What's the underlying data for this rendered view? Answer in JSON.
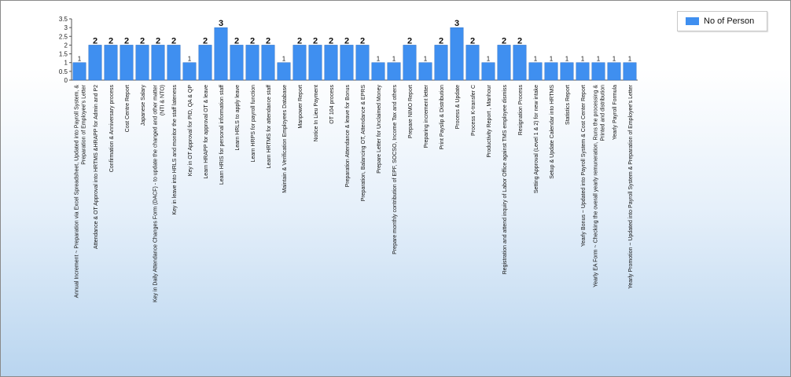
{
  "chart_data": {
    "type": "bar",
    "title": "",
    "xlabel": "",
    "ylabel": "",
    "ylim": [
      0,
      3.5
    ],
    "yticks": [
      "0",
      "0.5",
      "1",
      "1.5",
      "2",
      "2.5",
      "3",
      "3.5"
    ],
    "grid": false,
    "legend_position": "top-right",
    "bar_color": "#3f8ff0",
    "categories": [
      [
        "Annual Increment ~ Preparation via Excel Spreadsheet, Updated into Payroll System, &",
        "Preparation of Employee's Letter"
      ],
      [
        "Attendance & OT Approval into HRTMS &HRAPP for Admin and P2"
      ],
      [
        "Confirmation & Anniversary process"
      ],
      [
        "Cost Centre Report"
      ],
      [
        "Japanese Salary"
      ],
      [
        "Key in Daily Attendance Changes Form (DACF) - to update the changed and other matter",
        "(NTI & NTO)"
      ],
      [
        "Key in leave into HRLS and monitor the staff lateness"
      ],
      [
        "Key in OT Approval for PID, QA & QP"
      ],
      [
        "Learn HRAPP for approval OT & leave"
      ],
      [
        "Learn HRIS for  personal information staff"
      ],
      [
        "Learn HRLS to apply leave"
      ],
      [
        "Learn HRPS for payroll function"
      ],
      [
        "Learn HRTMS for attendance staff"
      ],
      [
        "Maintain & Verification Employees Database"
      ],
      [
        "Manpower Report"
      ],
      [
        "Notice In Lieu Payment"
      ],
      [
        "OT 104 process"
      ],
      [
        "Preparation Attendance & leave for Bonus"
      ],
      [
        "Preparation, Balancing OT, Attendance & EPRS"
      ],
      [
        "Prepare Letter for Unclaimed Money"
      ],
      [
        "Prepare monthly contribution of EPF, SOCSO, Income Tax and others"
      ],
      [
        "Prepare NIMO Report"
      ],
      [
        "Preparing increment letter"
      ],
      [
        "Print Payslip & Distribution"
      ],
      [
        "Process & Update"
      ],
      [
        "Process K-transfer C"
      ],
      [
        "Productivity Report , Manhour"
      ],
      [
        "Registration and attend inquiry of Labor Office against TMS employee dismiss"
      ],
      [
        "Resignation Process"
      ],
      [
        "Setting Approval (Level 1 & 2) for new intake"
      ],
      [
        "Setup & Update Calendar into HRTMS"
      ],
      [
        "Statistics Report"
      ],
      [
        "Yearly Bonus ~ Updated into Payroll System & Cost Center Report"
      ],
      [
        "Yearly EA Form ~ Checking the overall yearly remuneration, Runs the processing &",
        "Printed and distribution"
      ],
      [
        "Yearly Payroll Formula"
      ],
      [
        "Yearly Promotion ~ Updated into Payroll System & Preparation of Employee's Letter"
      ]
    ],
    "series": [
      {
        "name": "No of Person",
        "values": [
          1,
          2,
          2,
          2,
          2,
          2,
          2,
          1,
          2,
          3,
          2,
          2,
          2,
          1,
          2,
          2,
          2,
          2,
          2,
          1,
          1,
          2,
          1,
          2,
          3,
          2,
          1,
          2,
          2,
          1,
          1,
          1,
          1,
          1,
          1,
          1
        ]
      }
    ]
  },
  "legend": {
    "label": "No of Person"
  }
}
